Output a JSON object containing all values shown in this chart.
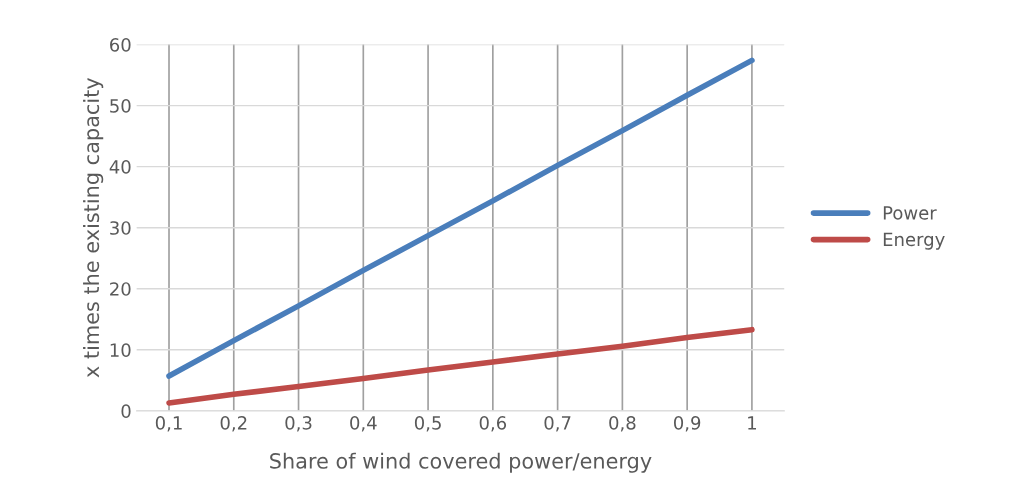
{
  "chart_data": {
    "type": "line",
    "xlabel": "Share of wind covered power/energy",
    "ylabel": "x times the existing capacity",
    "categories": [
      "0,1",
      "0,2",
      "0,3",
      "0,4",
      "0,5",
      "0,6",
      "0,7",
      "0,8",
      "0,9",
      "1"
    ],
    "series": [
      {
        "name": "Power",
        "color": "#4a7ebb",
        "values": [
          5.7,
          11.5,
          17.2,
          23.0,
          28.7,
          34.4,
          40.2,
          45.9,
          51.7,
          57.4
        ]
      },
      {
        "name": "Energy",
        "color": "#be4b48",
        "values": [
          1.3,
          2.7,
          4.0,
          5.3,
          6.7,
          8.0,
          9.3,
          10.6,
          12.0,
          13.3
        ]
      }
    ],
    "ylim": [
      0,
      60
    ],
    "yticks": [
      0,
      10,
      20,
      30,
      40,
      50,
      60
    ],
    "grid": true,
    "legend": "right",
    "marker": "none",
    "line_style": "solid"
  }
}
